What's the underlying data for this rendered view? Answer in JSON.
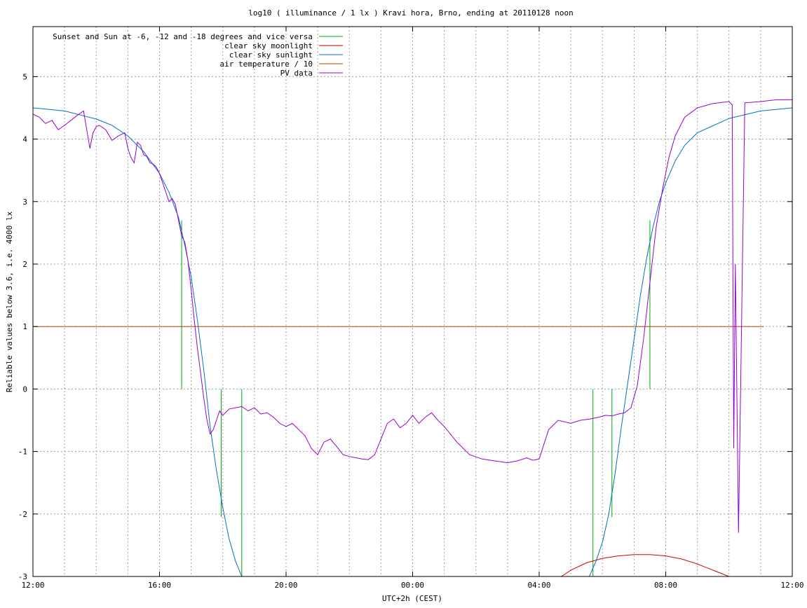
{
  "chart_data": {
    "type": "line",
    "title": "log10 ( illuminance / 1 lx ) Kravi hora, Brno, ending at 20110128 noon",
    "xlabel": "UTC+2h (CEST)",
    "ylabel": "Reliable values below 3.6, i.e. 4000 lx",
    "xlim": [
      0,
      24
    ],
    "ylim": [
      -3,
      5.8
    ],
    "x_ticks": [
      {
        "value": 0,
        "label": "12:00"
      },
      {
        "value": 4,
        "label": "16:00"
      },
      {
        "value": 8,
        "label": "20:00"
      },
      {
        "value": 12,
        "label": "00:00"
      },
      {
        "value": 16,
        "label": "04:00"
      },
      {
        "value": 20,
        "label": "08:00"
      },
      {
        "value": 24,
        "label": "12:00"
      }
    ],
    "x_minor_grid_step": 1,
    "y_ticks": [
      {
        "value": -3,
        "label": "-3"
      },
      {
        "value": -2,
        "label": "-2"
      },
      {
        "value": -1,
        "label": "-1"
      },
      {
        "value": 0,
        "label": "0"
      },
      {
        "value": 1,
        "label": "1"
      },
      {
        "value": 2,
        "label": "2"
      },
      {
        "value": 3,
        "label": "3"
      },
      {
        "value": 4,
        "label": "4"
      },
      {
        "value": 5,
        "label": "5"
      }
    ],
    "grid": true,
    "legend_position": "top-left",
    "series": [
      {
        "name": "Sunset and Sun at -6, -12 and -18 degrees and vice versa",
        "color": "#00aa00",
        "kind": "vlines",
        "lines": [
          {
            "x": 4.7,
            "y0": 0,
            "y1": 2.7
          },
          {
            "x": 5.95,
            "y0": -2.05,
            "y1": 0
          },
          {
            "x": 6.6,
            "y0": -3,
            "y1": 0
          },
          {
            "x": 17.7,
            "y0": -3,
            "y1": 0
          },
          {
            "x": 18.3,
            "y0": -2.05,
            "y1": 0
          },
          {
            "x": 19.5,
            "y0": 0,
            "y1": 2.7
          }
        ]
      },
      {
        "name": "clear sky moonlight",
        "color": "#cc0000",
        "kind": "line",
        "x": [
          16.7,
          17.0,
          17.5,
          18.0,
          18.5,
          19.0,
          19.5,
          20.0,
          20.5,
          21.0,
          21.5,
          22.0
        ],
        "y": [
          -3.0,
          -2.9,
          -2.78,
          -2.71,
          -2.67,
          -2.65,
          -2.65,
          -2.67,
          -2.72,
          -2.8,
          -2.9,
          -3.0
        ]
      },
      {
        "name": "clear sky sunlight",
        "color": "#0070c0",
        "kind": "line",
        "x": [
          0,
          1,
          2,
          2.5,
          3,
          3.5,
          4,
          4.3,
          4.6,
          4.8,
          5.0,
          5.2,
          5.4,
          5.6,
          5.8,
          6.0,
          6.2,
          6.4,
          6.6,
          6.8,
          17.5,
          17.8,
          18.0,
          18.2,
          18.4,
          18.6,
          18.8,
          19.0,
          19.2,
          19.4,
          19.6,
          19.8,
          20.0,
          20.3,
          20.6,
          21,
          22,
          23,
          24
        ],
        "y": [
          4.5,
          4.45,
          4.32,
          4.22,
          4.05,
          3.8,
          3.45,
          3.15,
          2.75,
          2.3,
          1.8,
          1.1,
          0.3,
          -0.6,
          -1.3,
          -1.9,
          -2.4,
          -2.75,
          -3.0,
          -3.1,
          -3.1,
          -2.75,
          -2.45,
          -2.0,
          -1.35,
          -0.6,
          0.1,
          0.8,
          1.5,
          2.1,
          2.6,
          3.0,
          3.3,
          3.65,
          3.9,
          4.1,
          4.33,
          4.45,
          4.5
        ]
      },
      {
        "name": "air temperature / 10",
        "color": "#c04000",
        "kind": "line",
        "x": [
          0,
          23.1
        ],
        "y": [
          1.0,
          1.0
        ]
      },
      {
        "name": "PV data",
        "color": "#9400d3",
        "kind": "line",
        "x": [
          0,
          0.2,
          0.4,
          0.6,
          0.8,
          1.0,
          1.2,
          1.4,
          1.6,
          1.8,
          1.9,
          2.0,
          2.1,
          2.3,
          2.5,
          2.7,
          2.9,
          3.0,
          3.1,
          3.2,
          3.3,
          3.4,
          3.5,
          3.6,
          3.7,
          3.8,
          3.9,
          4.0,
          4.1,
          4.2,
          4.3,
          4.4,
          4.5,
          4.6,
          4.7,
          4.8,
          4.9,
          5.0,
          5.1,
          5.2,
          5.3,
          5.4,
          5.5,
          5.6,
          5.7,
          5.8,
          5.9,
          6.0,
          6.2,
          6.4,
          6.6,
          6.8,
          7.0,
          7.2,
          7.4,
          7.6,
          7.8,
          8.0,
          8.2,
          8.4,
          8.6,
          8.8,
          9.0,
          9.2,
          9.4,
          9.6,
          9.8,
          10.0,
          10.2,
          10.4,
          10.6,
          10.8,
          11.0,
          11.2,
          11.4,
          11.6,
          11.8,
          12.0,
          12.2,
          12.4,
          12.6,
          12.8,
          13.0,
          13.4,
          13.8,
          14.2,
          14.6,
          15.0,
          15.3,
          15.5,
          15.6,
          15.8,
          16.0,
          16.3,
          16.6,
          17.0,
          17.3,
          17.6,
          17.9,
          18.1,
          18.3,
          18.5,
          18.7,
          18.9,
          19.1,
          19.3,
          19.5,
          19.7,
          19.9,
          20.1,
          20.3,
          20.6,
          21.0,
          21.5,
          22.0,
          22.1,
          22.15,
          22.2,
          22.3,
          22.5,
          23.0,
          23.5,
          24.0
        ],
        "y": [
          4.4,
          4.35,
          4.25,
          4.3,
          4.15,
          4.22,
          4.3,
          4.38,
          4.45,
          3.85,
          4.1,
          4.2,
          4.22,
          4.15,
          3.98,
          4.05,
          4.1,
          3.85,
          3.7,
          3.62,
          3.95,
          3.9,
          3.75,
          3.72,
          3.62,
          3.6,
          3.55,
          3.45,
          3.3,
          3.15,
          3.0,
          3.05,
          2.95,
          2.7,
          2.45,
          2.35,
          2.05,
          1.6,
          1.1,
          0.65,
          0.25,
          -0.15,
          -0.5,
          -0.72,
          -0.65,
          -0.5,
          -0.35,
          -0.42,
          -0.32,
          -0.3,
          -0.28,
          -0.35,
          -0.3,
          -0.4,
          -0.38,
          -0.45,
          -0.55,
          -0.6,
          -0.55,
          -0.65,
          -0.75,
          -0.95,
          -1.05,
          -0.85,
          -0.8,
          -0.92,
          -1.05,
          -1.08,
          -1.1,
          -1.12,
          -1.13,
          -1.05,
          -0.8,
          -0.55,
          -0.48,
          -0.62,
          -0.55,
          -0.42,
          -0.55,
          -0.45,
          -0.38,
          -0.5,
          -0.6,
          -0.85,
          -1.05,
          -1.12,
          -1.15,
          -1.18,
          -1.15,
          -1.12,
          -1.1,
          -1.14,
          -1.12,
          -0.65,
          -0.5,
          -0.55,
          -0.5,
          -0.48,
          -0.45,
          -0.42,
          -0.43,
          -0.4,
          -0.38,
          -0.3,
          0.05,
          0.8,
          1.7,
          2.6,
          3.2,
          3.7,
          4.05,
          4.35,
          4.5,
          4.57,
          4.6,
          4.55,
          -0.95,
          2.0,
          -2.3,
          4.58,
          4.6,
          4.63,
          4.63
        ]
      }
    ]
  }
}
